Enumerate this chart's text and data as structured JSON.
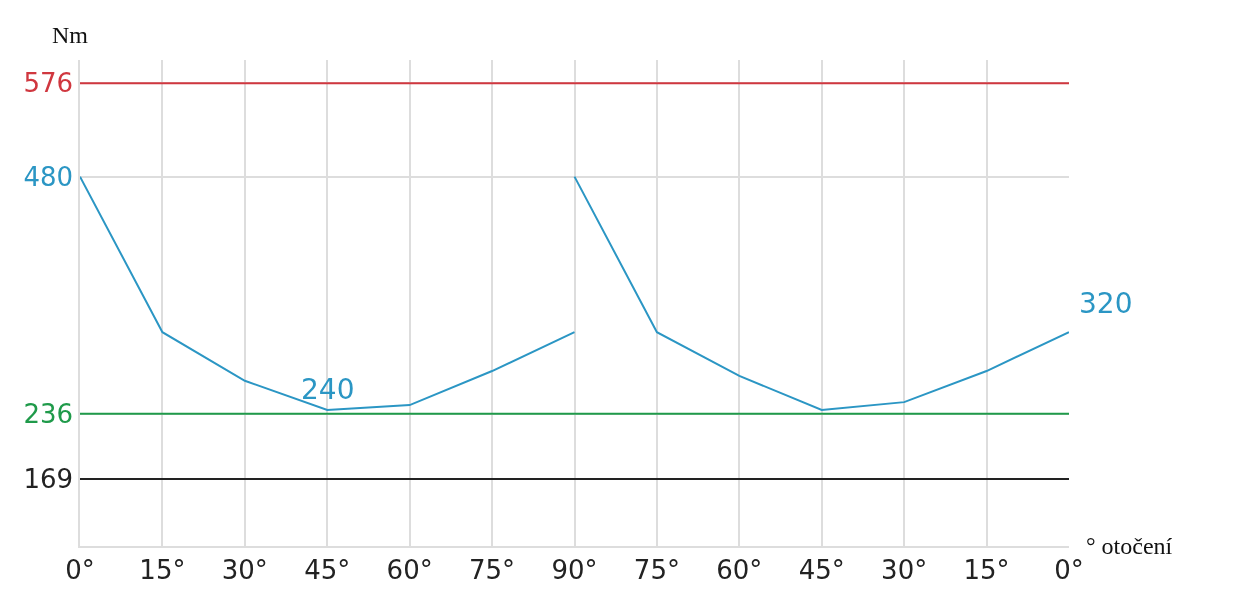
{
  "chart_data": {
    "type": "line",
    "xlabel": "° otočení",
    "ylabel": "Nm",
    "categories": [
      "0°",
      "15°",
      "30°",
      "45°",
      "60°",
      "75°",
      "90°",
      "75°",
      "60°",
      "45°",
      "30°",
      "15°",
      "0°"
    ],
    "series": [
      {
        "color": "#2b96c4",
        "values": [
          480,
          320,
          270,
          240,
          245,
          280,
          320,
          null,
          null,
          null,
          null,
          null,
          null
        ]
      },
      {
        "color": "#2b96c4",
        "values": [
          null,
          null,
          null,
          null,
          null,
          null,
          480,
          320,
          275,
          240,
          248,
          280,
          320
        ]
      }
    ],
    "ylim": [
      100,
      600
    ],
    "yticks": [
      169,
      236,
      480,
      576
    ],
    "ref_lines": [
      {
        "axis": "y",
        "value": 576,
        "color": "#d0373f"
      },
      {
        "axis": "y",
        "value": 236,
        "color": "#1f9a4a"
      },
      {
        "axis": "y",
        "value": 169,
        "color": "#222222"
      }
    ],
    "annotations": [
      {
        "text": "240",
        "x": "45°",
        "y": 240
      },
      "320"
    ],
    "grid": true,
    "marker": "none",
    "line_style": "solid"
  }
}
